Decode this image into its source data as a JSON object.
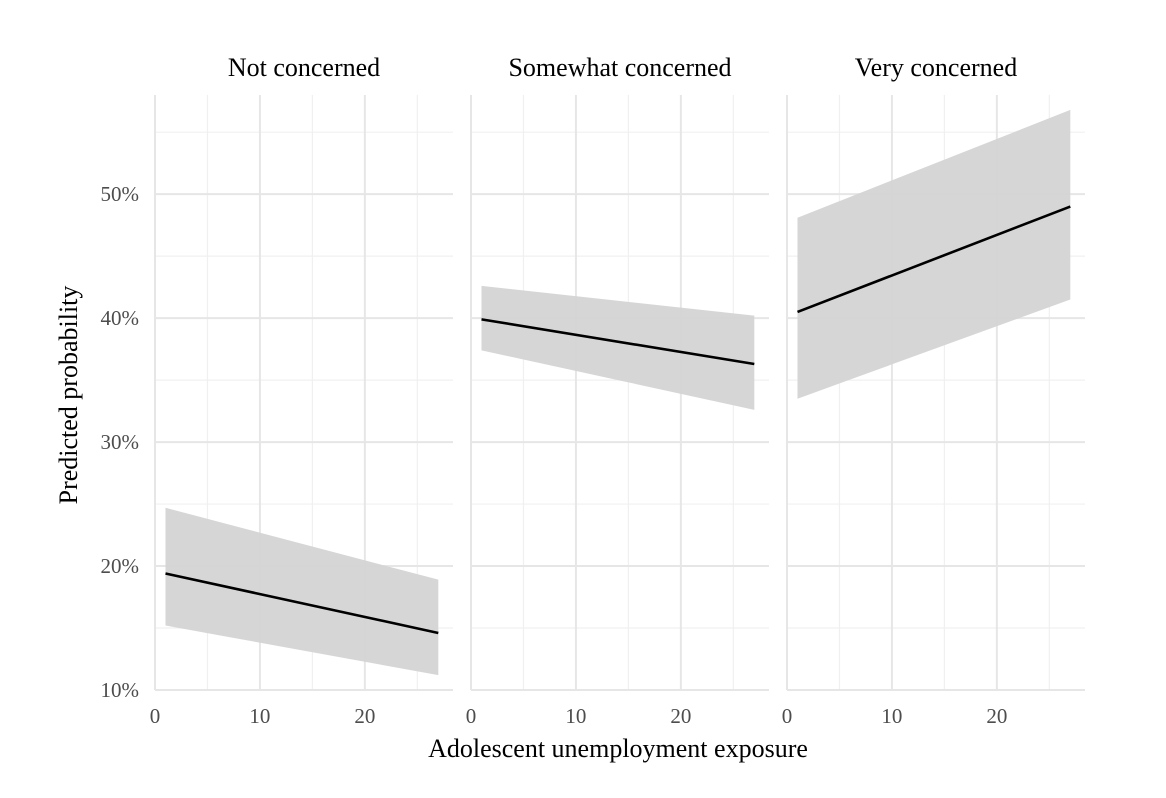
{
  "chart_data": {
    "type": "line",
    "facet_variable": "concern level",
    "xlabel": "Adolescent unemployment exposure",
    "ylabel": "Predicted probability",
    "x_ticks": [
      0,
      10,
      20
    ],
    "x_tick_labels": [
      "0",
      "10",
      "20"
    ],
    "y_ticks": [
      0.1,
      0.2,
      0.3,
      0.4,
      0.5
    ],
    "y_tick_labels": [
      "10%",
      "20%",
      "30%",
      "40%",
      "50%"
    ],
    "xlim": [
      0,
      28.4
    ],
    "ylim": [
      0.1,
      0.58
    ],
    "grid": true,
    "ribbon": "confidence interval",
    "panels": [
      {
        "title": "Not concerned",
        "x": [
          1,
          27
        ],
        "fit": [
          0.194,
          0.146
        ],
        "lower": [
          0.152,
          0.112
        ],
        "upper": [
          0.247,
          0.189
        ]
      },
      {
        "title": "Somewhat concerned",
        "x": [
          1,
          27
        ],
        "fit": [
          0.399,
          0.363
        ],
        "lower": [
          0.374,
          0.326
        ],
        "upper": [
          0.426,
          0.402
        ]
      },
      {
        "title": "Very concerned",
        "x": [
          1,
          27
        ],
        "fit": [
          0.405,
          0.49
        ],
        "lower": [
          0.335,
          0.415
        ],
        "upper": [
          0.481,
          0.568
        ]
      }
    ]
  }
}
